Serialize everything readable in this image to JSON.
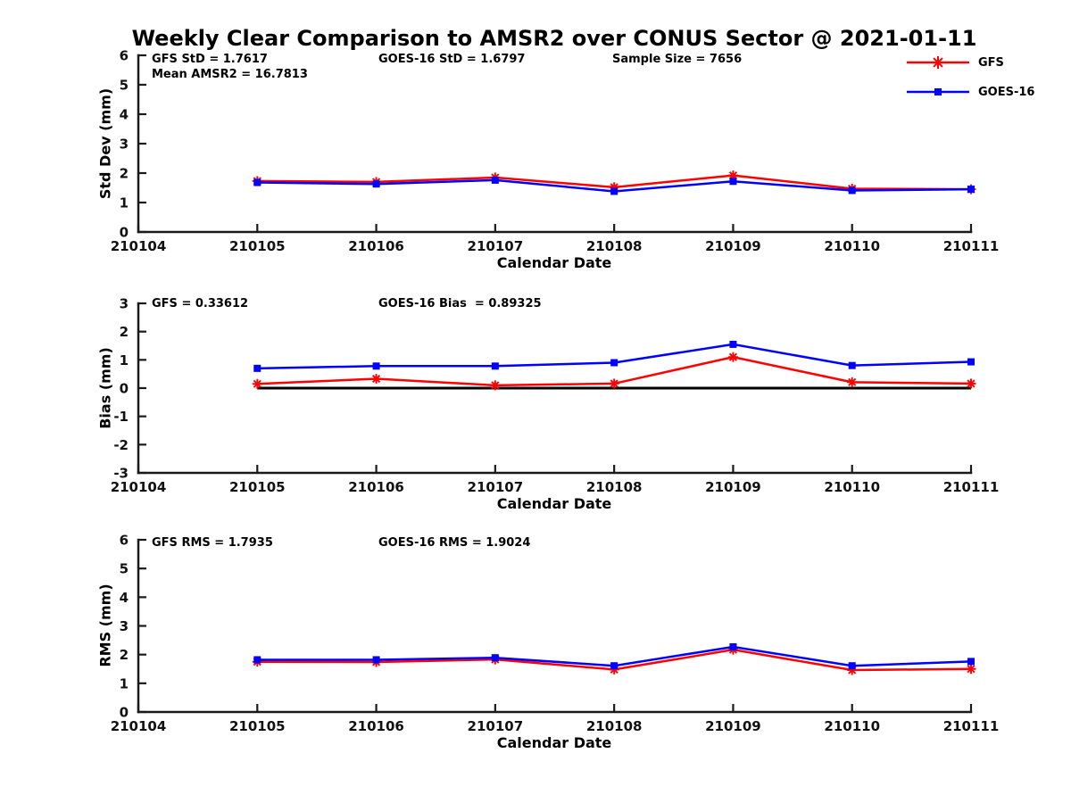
{
  "title": "Weekly Clear Comparison to AMSR2 over CONUS Sector @ 2021-01-11",
  "legend": {
    "items": [
      {
        "label": "GFS",
        "color": "#ff0000",
        "marker": "asterisk"
      },
      {
        "label": "GOES-16",
        "color": "#0000ff",
        "marker": "square"
      }
    ]
  },
  "colors": {
    "gfs": "#ff0000",
    "goes16": "#0000ff",
    "axis": "#1a1a1a",
    "zero_line": "#000000"
  },
  "chart_data": [
    {
      "type": "line",
      "ylabel": "Std Dev (mm)",
      "xlabel": "Calendar Date",
      "ylim": [
        0,
        6
      ],
      "yticks": [
        0,
        1,
        2,
        3,
        4,
        5,
        6
      ],
      "grid": false,
      "x_categories": [
        "210104",
        "210105",
        "210106",
        "210107",
        "210108",
        "210109",
        "210110",
        "210111"
      ],
      "x": [
        "210105",
        "210106",
        "210107",
        "210108",
        "210109",
        "210110",
        "210111"
      ],
      "series": [
        {
          "name": "GFS",
          "color": "#ff0000",
          "marker": "asterisk",
          "values": [
            1.73,
            1.7,
            1.85,
            1.52,
            1.92,
            1.47,
            1.45
          ]
        },
        {
          "name": "GOES-16",
          "color": "#0000ff",
          "marker": "square",
          "values": [
            1.68,
            1.63,
            1.76,
            1.38,
            1.72,
            1.41,
            1.45
          ]
        }
      ],
      "annotations": [
        "GFS StD = 1.7617",
        "GOES-16 StD = 1.6797",
        "Sample Size = 7656",
        "Mean AMSR2 = 16.7813"
      ]
    },
    {
      "type": "line",
      "ylabel": "Bias (mm)",
      "xlabel": "Calendar Date",
      "ylim": [
        -3,
        3
      ],
      "yticks": [
        -3,
        -2,
        -1,
        0,
        1,
        2,
        3
      ],
      "grid": false,
      "zero_line": true,
      "x_categories": [
        "210104",
        "210105",
        "210106",
        "210107",
        "210108",
        "210109",
        "210110",
        "210111"
      ],
      "x": [
        "210105",
        "210106",
        "210107",
        "210108",
        "210109",
        "210110",
        "210111"
      ],
      "series": [
        {
          "name": "GFS",
          "color": "#ff0000",
          "marker": "asterisk",
          "values": [
            0.15,
            0.33,
            0.1,
            0.16,
            1.1,
            0.21,
            0.16
          ]
        },
        {
          "name": "GOES-16",
          "color": "#0000ff",
          "marker": "square",
          "values": [
            0.7,
            0.78,
            0.78,
            0.9,
            1.55,
            0.8,
            0.93
          ]
        }
      ],
      "annotations": [
        "GFS = 0.33612",
        "GOES-16 Bias  = 0.89325"
      ]
    },
    {
      "type": "line",
      "ylabel": "RMS (mm)",
      "xlabel": "Calendar Date",
      "ylim": [
        0,
        6
      ],
      "yticks": [
        0,
        1,
        2,
        3,
        4,
        5,
        6
      ],
      "grid": false,
      "x_categories": [
        "210104",
        "210105",
        "210106",
        "210107",
        "210108",
        "210109",
        "210110",
        "210111"
      ],
      "x": [
        "210105",
        "210106",
        "210107",
        "210108",
        "210109",
        "210110",
        "210111"
      ],
      "series": [
        {
          "name": "GFS",
          "color": "#ff0000",
          "marker": "asterisk",
          "values": [
            1.75,
            1.74,
            1.83,
            1.48,
            2.17,
            1.46,
            1.5
          ]
        },
        {
          "name": "GOES-16",
          "color": "#0000ff",
          "marker": "square",
          "values": [
            1.82,
            1.82,
            1.89,
            1.61,
            2.27,
            1.61,
            1.76
          ]
        }
      ],
      "annotations": [
        "GFS RMS = 1.7935",
        "GOES-16 RMS = 1.9024"
      ]
    }
  ]
}
